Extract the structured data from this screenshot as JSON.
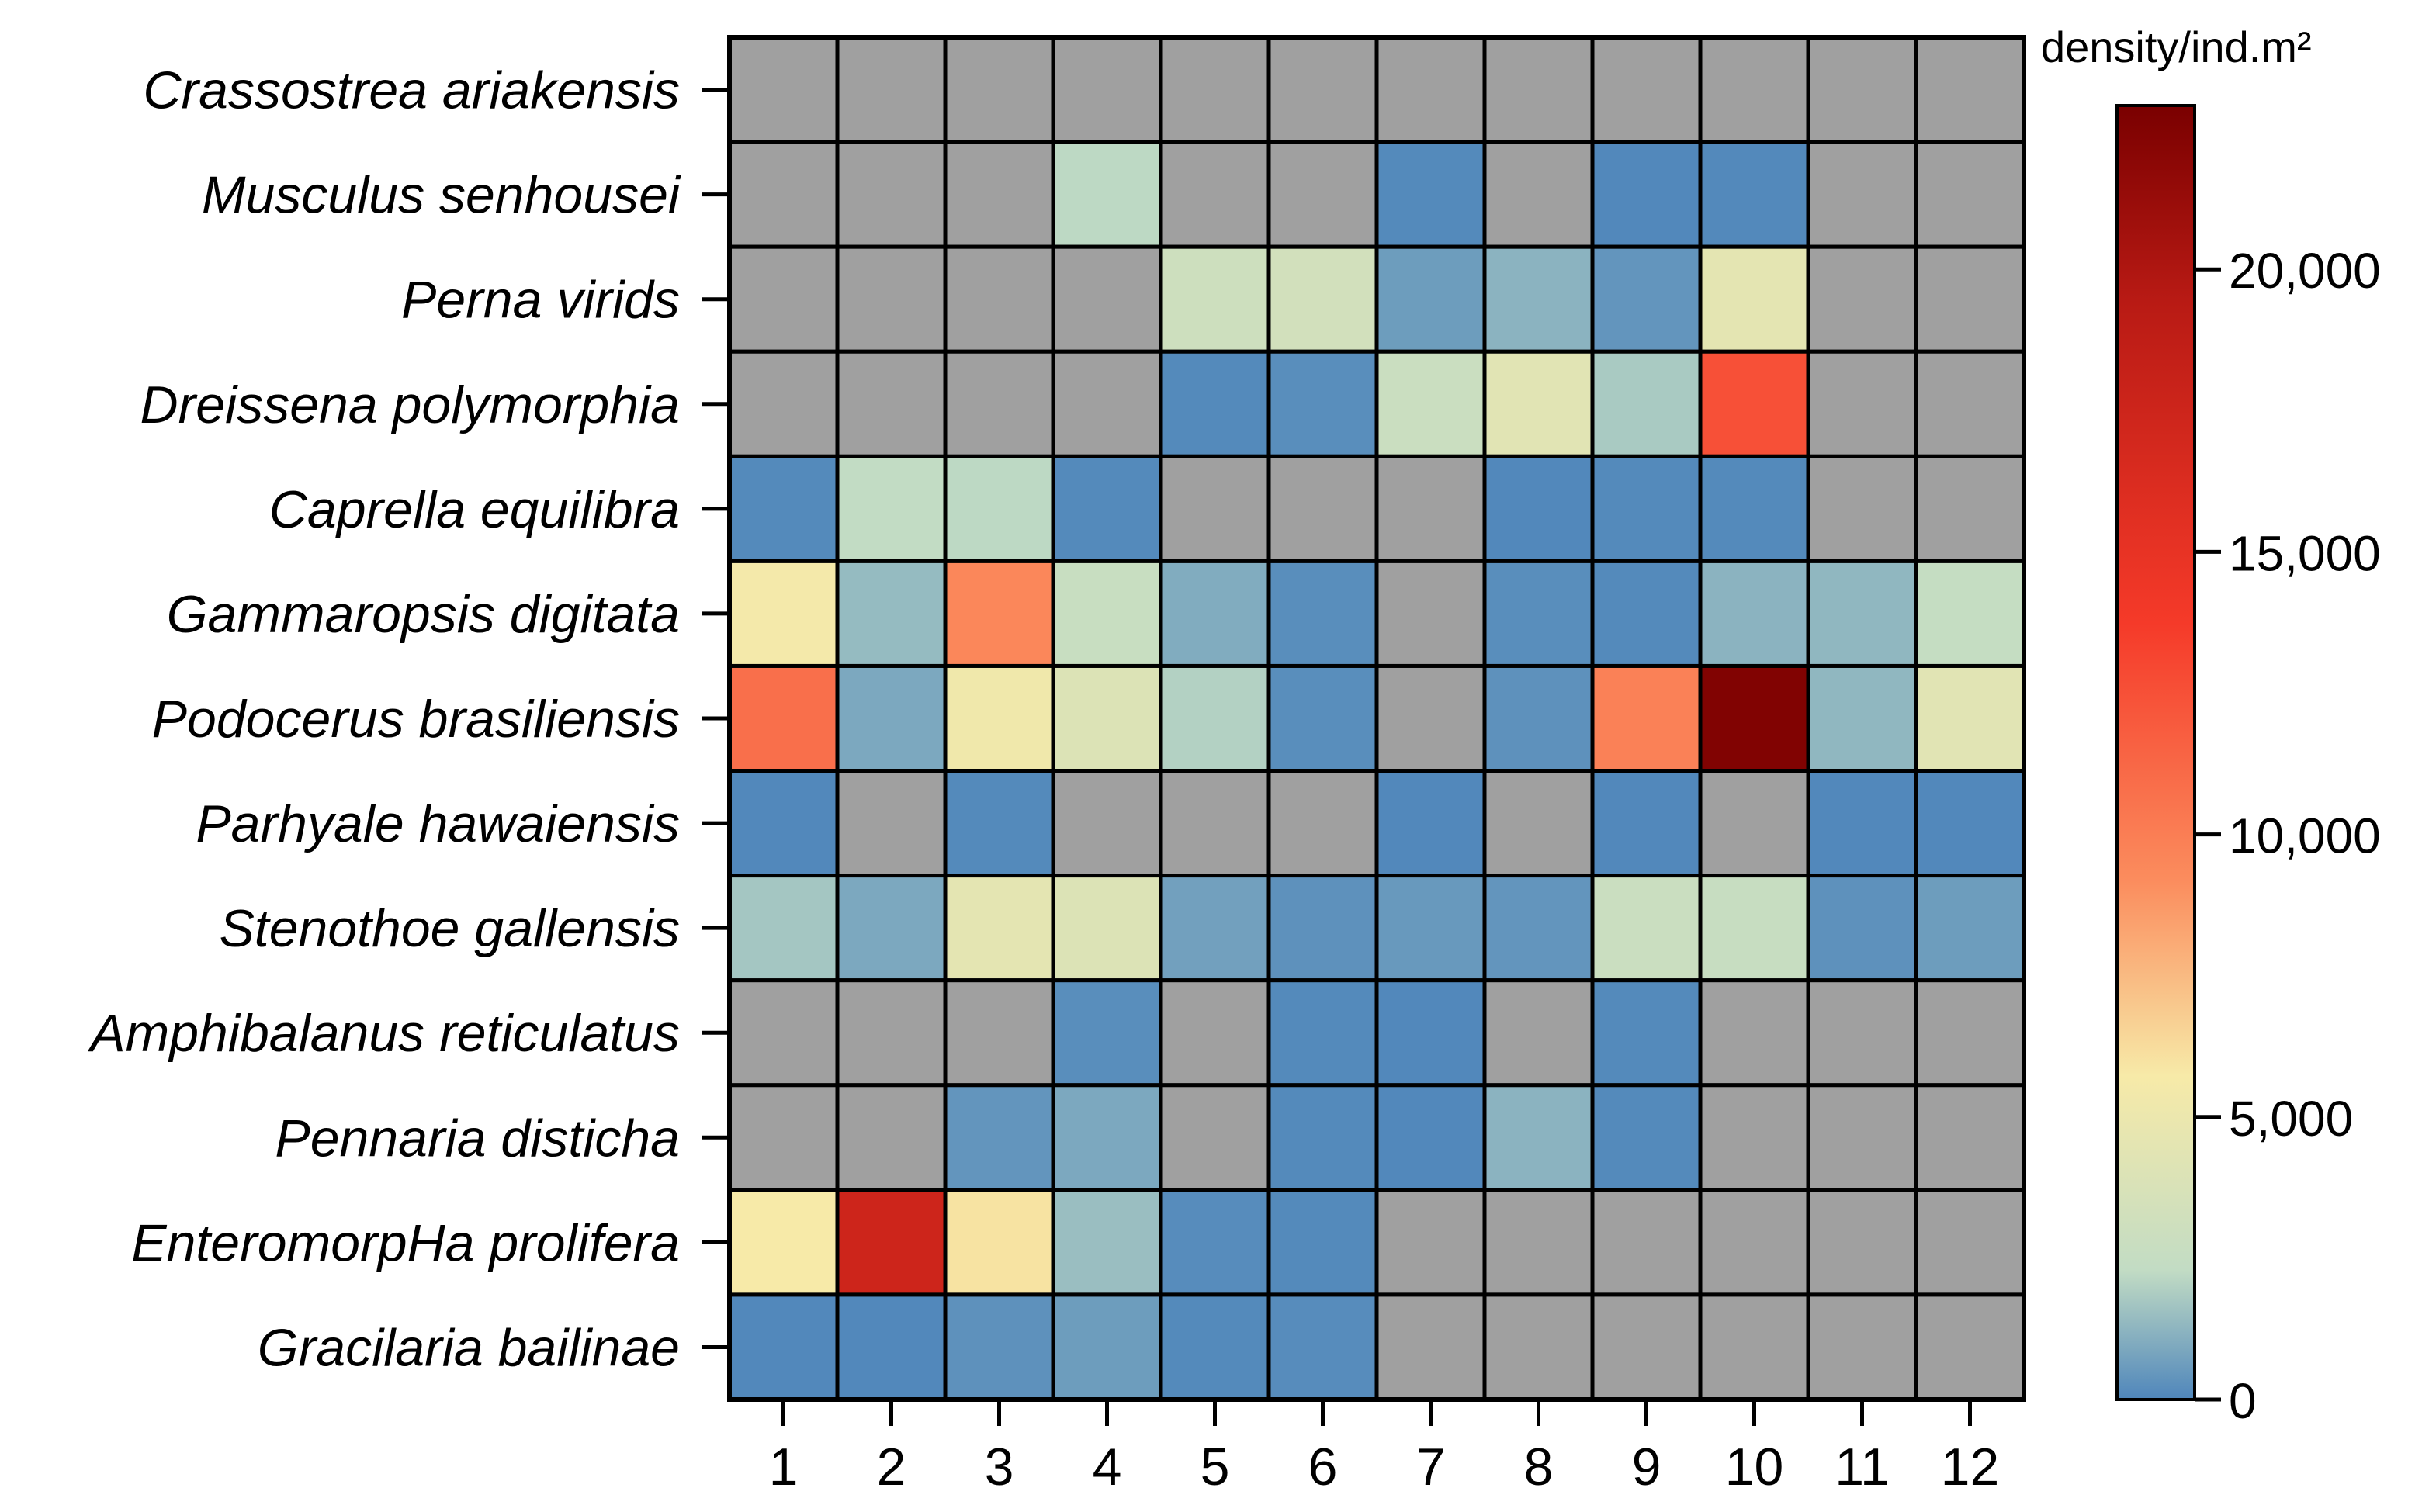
{
  "chart_data": {
    "type": "heatmap",
    "x_categories": [
      "1",
      "2",
      "3",
      "4",
      "5",
      "6",
      "7",
      "8",
      "9",
      "10",
      "11",
      "12"
    ],
    "y_categories": [
      "Crassostrea ariakensis",
      "Musculus senhousei",
      "Perna virids",
      "Dreissena polymorphia",
      "Caprella equilibra",
      "Gammaropsis digitata",
      "Podocerus brasiliensis",
      "Parhyale hawaiensis",
      "Stenothoe gallensis",
      "Amphibalanus reticulatus",
      "Pennaria disticha",
      "EnteromorpHa prolifera",
      "Gracilaria bailinae"
    ],
    "values": [
      [
        null,
        null,
        null,
        null,
        null,
        null,
        null,
        null,
        null,
        null,
        null,
        null
      ],
      [
        null,
        null,
        null,
        2200,
        null,
        null,
        100,
        null,
        50,
        80,
        null,
        null
      ],
      [
        null,
        null,
        null,
        null,
        3000,
        3300,
        600,
        1200,
        400,
        4500,
        null,
        null
      ],
      [
        null,
        null,
        null,
        null,
        100,
        200,
        2800,
        4300,
        1800,
        12500,
        null,
        null
      ],
      [
        100,
        2300,
        2200,
        100,
        null,
        null,
        null,
        50,
        100,
        100,
        null,
        null
      ],
      [
        5500,
        1400,
        9500,
        2700,
        1000,
        200,
        null,
        200,
        100,
        1200,
        1300,
        2500
      ],
      [
        10800,
        900,
        5300,
        4000,
        2000,
        200,
        null,
        300,
        9800,
        22500,
        1300,
        4300
      ],
      [
        50,
        null,
        100,
        null,
        null,
        null,
        50,
        null,
        50,
        null,
        50,
        50
      ],
      [
        1700,
        900,
        4500,
        4000,
        700,
        300,
        500,
        400,
        2800,
        2600,
        300,
        600
      ],
      [
        null,
        null,
        null,
        200,
        null,
        100,
        50,
        null,
        100,
        null,
        null,
        null
      ],
      [
        null,
        null,
        400,
        900,
        null,
        100,
        50,
        1200,
        100,
        null,
        null,
        null
      ],
      [
        5700,
        17500,
        6000,
        1500,
        150,
        100,
        null,
        null,
        null,
        null,
        null,
        null
      ],
      [
        50,
        50,
        300,
        600,
        100,
        150,
        null,
        null,
        null,
        null,
        null,
        null
      ]
    ],
    "colorbar": {
      "title": "density/ind.m²",
      "min": 0,
      "max": 22900,
      "ticks": [
        0,
        5000,
        10000,
        15000,
        20000
      ],
      "tick_labels": [
        "0",
        "5,000",
        "10,000",
        "15,000",
        "20,000"
      ],
      "stops": [
        {
          "offset": 0.0,
          "color": "#4f86bb"
        },
        {
          "offset": 0.1,
          "color": "#c2dcc4"
        },
        {
          "offset": 0.25,
          "color": "#f7eaa8"
        },
        {
          "offset": 0.4,
          "color": "#fb8d5e"
        },
        {
          "offset": 0.6,
          "color": "#f53a29"
        },
        {
          "offset": 0.85,
          "color": "#b81a14"
        },
        {
          "offset": 1.0,
          "color": "#7a0000"
        }
      ]
    },
    "missing_color": "#a0a0a0"
  }
}
